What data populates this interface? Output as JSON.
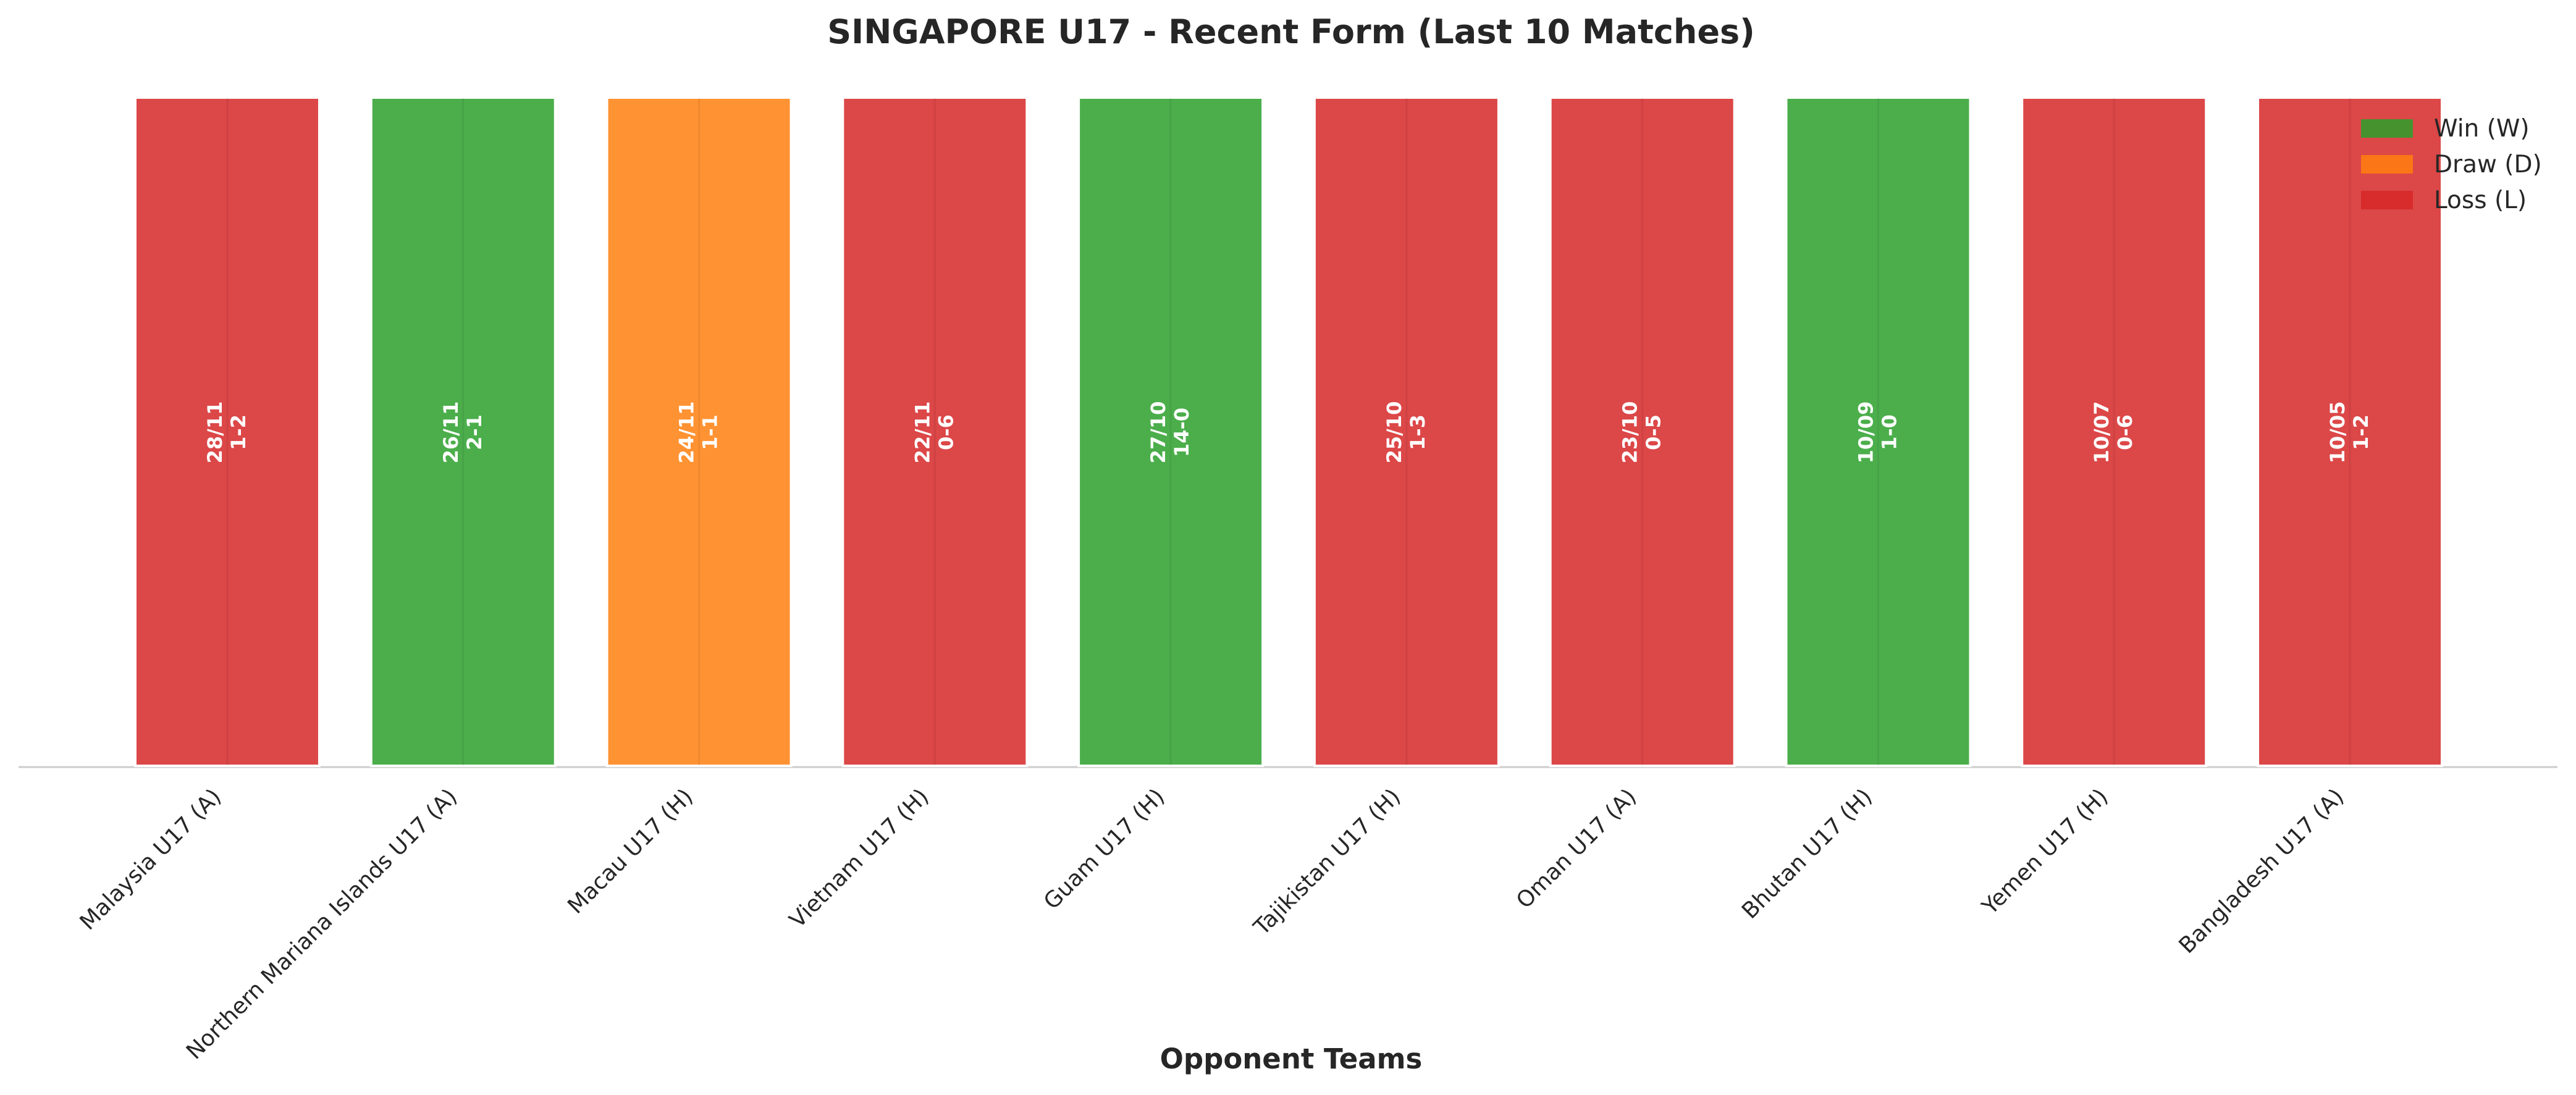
{
  "chart_data": {
    "type": "bar",
    "title": "SINGAPORE U17 - Recent Form (Last 10 Matches)",
    "xlabel": "Opponent Teams",
    "ylabel": "",
    "ylim": [
      0,
      1
    ],
    "grid": false,
    "legend_position": "top-right",
    "categories": [
      "Malaysia U17 (A)",
      "Northern Mariana Islands U17 (A)",
      "Macau U17 (H)",
      "Vietnam U17 (H)",
      "Guam U17 (H)",
      "Tajikistan U17 (H)",
      "Oman U17 (A)",
      "Bhutan U17 (H)",
      "Yemen U17 (H)",
      "Bangladesh U17 (A)"
    ],
    "values": [
      1,
      1,
      1,
      1,
      1,
      1,
      1,
      1,
      1,
      1
    ],
    "results": [
      "L",
      "W",
      "D",
      "L",
      "W",
      "L",
      "L",
      "W",
      "L",
      "L"
    ],
    "dates": [
      "28/11",
      "26/11",
      "24/11",
      "22/11",
      "27/10",
      "25/10",
      "23/10",
      "10/09",
      "10/07",
      "10/05"
    ],
    "scores": [
      "1-2",
      "2-1",
      "1-1",
      "0-6",
      "14-0",
      "1-3",
      "0-5",
      "1-0",
      "0-6",
      "1-2"
    ],
    "legend": [
      {
        "key": "W",
        "label": "Win (W)",
        "color": "#2ca02c"
      },
      {
        "key": "D",
        "label": "Draw (D)",
        "color": "#ff7f0e"
      },
      {
        "key": "L",
        "label": "Loss (L)",
        "color": "#d62728"
      }
    ]
  }
}
